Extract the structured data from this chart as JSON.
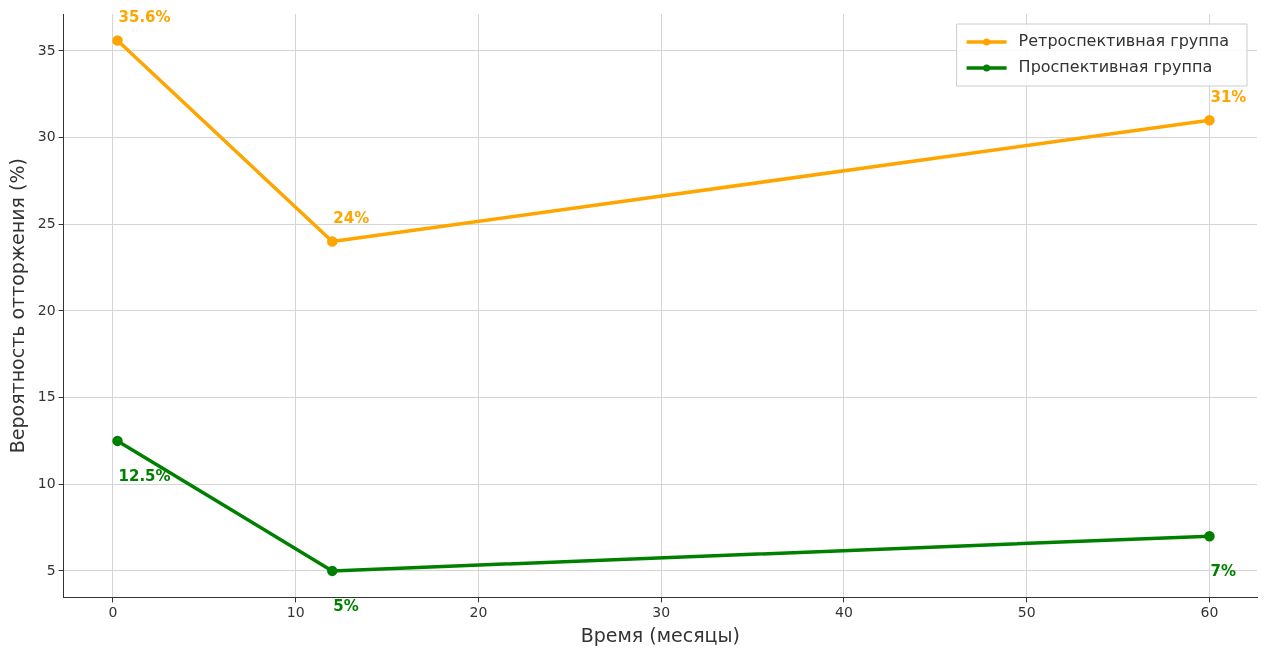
{
  "chart_data": {
    "type": "line",
    "xlabel": "Время (месяцы)",
    "ylabel": "Вероятность отторжения (%)",
    "x": [
      0.25,
      12,
      60
    ],
    "series": [
      {
        "name": "Ретроспективная группа",
        "color": "#ffa500",
        "values": [
          35.6,
          24,
          31
        ],
        "value_labels": [
          "35.6%",
          "24%",
          "31%"
        ]
      },
      {
        "name": "Проспективная группа",
        "color": "#008000",
        "values": [
          12.5,
          5,
          7
        ],
        "value_labels": [
          "12.5%",
          "5%",
          "7%"
        ]
      }
    ],
    "xlim": [
      -2.7,
      62.6
    ],
    "xticks": [
      0,
      10,
      20,
      30,
      40,
      50,
      60
    ],
    "ylim": [
      3.47,
      37.13
    ],
    "yticks": [
      5,
      10,
      15,
      20,
      25,
      30,
      35
    ],
    "grid": true,
    "legend": "top right",
    "marker": "circle",
    "line_style": "solid"
  }
}
